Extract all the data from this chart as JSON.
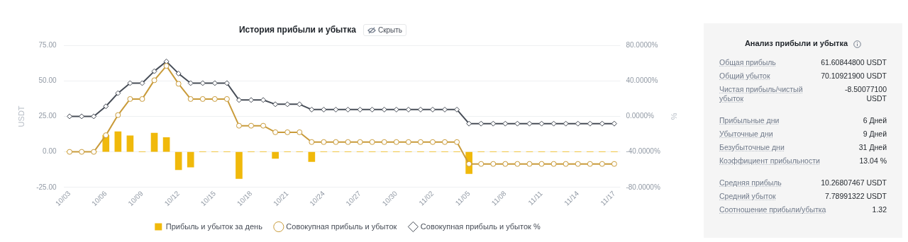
{
  "chart_data": [
    {
      "type": "bar",
      "title": "История прибыли и убытка",
      "annotations": [
        "Скрыть"
      ],
      "categories": [
        "10/03",
        null,
        null,
        "10/06",
        null,
        null,
        "10/09",
        null,
        null,
        "10/12",
        null,
        null,
        "10/15",
        null,
        null,
        "10/18",
        null,
        null,
        "10/21",
        null,
        null,
        "10/24",
        null,
        null,
        "10/27",
        null,
        null,
        "10/30",
        null,
        null,
        "11/02",
        null,
        null,
        "11/05",
        null,
        null,
        "11/08",
        null,
        null,
        "11/11",
        null,
        null,
        "11/14",
        null,
        null,
        "11/17"
      ],
      "series": [
        {
          "name": "Прибыль и убыток за день",
          "type": "bar",
          "color": "#f0b90b",
          "values": [
            0,
            0,
            0,
            11.7,
            14.2,
            11.3,
            0,
            13.2,
            10.1,
            -12.6,
            -10.7,
            0,
            0,
            0,
            -18.8,
            0,
            0,
            -4.6,
            0,
            0,
            -6.9,
            0,
            0,
            0,
            0,
            0,
            0,
            0,
            0,
            0,
            0,
            0,
            0,
            -15.4,
            0,
            0,
            0,
            0,
            0,
            0,
            0,
            0,
            0,
            0,
            0,
            0
          ]
        },
        {
          "name": "Совокупная прибыль и убыток",
          "type": "line",
          "marker": "circle",
          "color": "#c99b3a",
          "values": [
            0,
            0,
            0,
            11.7,
            25.9,
            37.2,
            37.2,
            50.4,
            60.5,
            47.9,
            37.2,
            37.2,
            37.2,
            37.2,
            18.4,
            18.4,
            18.4,
            13.8,
            13.8,
            13.8,
            6.9,
            6.9,
            6.9,
            6.9,
            6.9,
            6.9,
            6.9,
            6.9,
            6.9,
            6.9,
            6.9,
            6.9,
            6.9,
            -8.5,
            -8.5,
            -8.5,
            -8.5,
            -8.5,
            -8.5,
            -8.5,
            -8.5,
            -8.5,
            -8.5,
            -8.5,
            -8.5,
            -8.5
          ]
        },
        {
          "name": "Совокупная прибыль и убыток %",
          "type": "line",
          "marker": "diamond",
          "axis": "y2",
          "color": "#474d57",
          "values": [
            0,
            0,
            0,
            11.3,
            26.1,
            37.4,
            37.4,
            50.8,
            61.8,
            48.2,
            37.4,
            37.4,
            37.4,
            37.4,
            18.4,
            18.4,
            18.4,
            13.6,
            13.6,
            13.6,
            7.6,
            7.6,
            7.6,
            7.6,
            7.6,
            7.6,
            7.6,
            7.6,
            7.6,
            7.6,
            7.6,
            7.6,
            7.6,
            -8.2,
            -8.2,
            -8.2,
            -8.2,
            -8.2,
            -8.2,
            -8.2,
            -8.2,
            -8.2,
            -8.2,
            -8.2,
            -8.2,
            -8.2
          ]
        }
      ],
      "ylabel": "USDT",
      "y2label": "%",
      "ylim": [
        -25,
        75
      ],
      "yticks": [
        {
          "value": -25,
          "label": "-25.00"
        },
        {
          "value": 0,
          "label": "0.00"
        },
        {
          "value": 25,
          "label": "25.00"
        },
        {
          "value": 50,
          "label": "50.00"
        },
        {
          "value": 75,
          "label": "75.00"
        }
      ],
      "y2lim": [
        -80,
        80
      ],
      "y2ticks": [
        {
          "value": -80,
          "label": "-80.0000%"
        },
        {
          "value": -40,
          "label": "-40.0000%"
        },
        {
          "value": 0,
          "label": "0.0000%"
        },
        {
          "value": 40,
          "label": "40.0000%"
        },
        {
          "value": 80,
          "label": "80.0000%"
        }
      ],
      "grid": "y",
      "legend": "bottom"
    },
    {
      "type": "other",
      "title": "Анализ прибыли и убытка",
      "annotations": [
        "Общая прибыль",
        "61.60844800 USDT",
        "Общий убыток",
        "70.10921900 USDT",
        "Чистая прибыль/чистый убыток",
        "-8.50077100 USDT",
        "Прибыльные дни",
        "6 Дней",
        "Убыточные дни",
        "9 Дней",
        "Безубыточные дни",
        "31 Дней",
        "Коэффициент прибыльности",
        "13.04 %",
        "Средняя прибыль",
        "10.26807467 USDT",
        "Средний убыток",
        "7.78991322 USDT",
        "Соотношение прибыли/убытка",
        "1.32"
      ]
    }
  ]
}
